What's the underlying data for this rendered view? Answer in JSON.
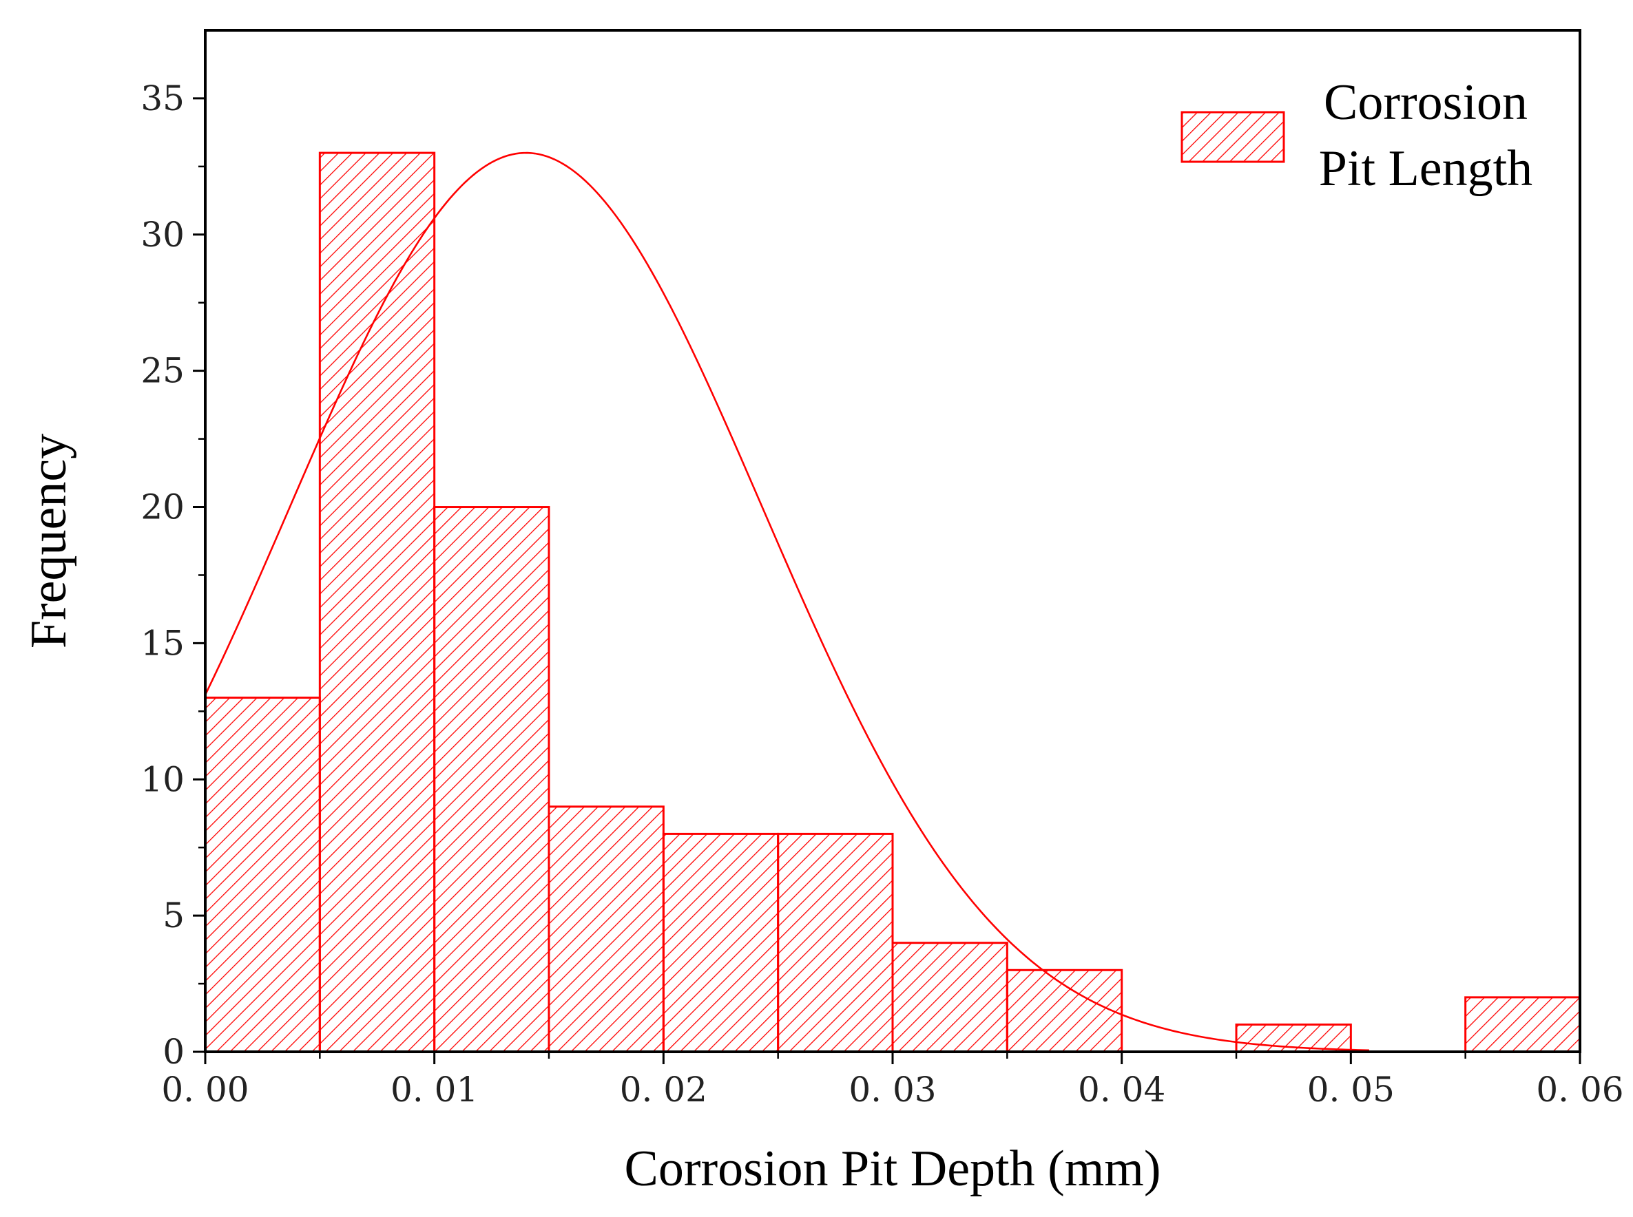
{
  "chart_data": {
    "type": "bar",
    "subtype": "histogram-with-normal-fit",
    "xlabel": "Corrosion Pit Depth (mm)",
    "ylabel": "Frequency",
    "xlim": [
      0,
      0.06
    ],
    "ylim": [
      0,
      37.5
    ],
    "x_ticks": [
      0,
      0.01,
      0.02,
      0.03,
      0.04,
      0.05,
      0.06
    ],
    "x_tick_labels": [
      "0. 00",
      "0. 01",
      "0. 02",
      "0. 03",
      "0. 04",
      "0. 05",
      "0. 06"
    ],
    "y_ticks": [
      0,
      5,
      10,
      15,
      20,
      25,
      30,
      35
    ],
    "y_tick_labels": [
      "0",
      "5",
      "10",
      "15",
      "20",
      "25",
      "30",
      "35"
    ],
    "bin_width": 0.005,
    "bins": [
      {
        "start": 0.0,
        "end": 0.005,
        "count": 13
      },
      {
        "start": 0.005,
        "end": 0.01,
        "count": 33
      },
      {
        "start": 0.01,
        "end": 0.015,
        "count": 20
      },
      {
        "start": 0.015,
        "end": 0.02,
        "count": 9
      },
      {
        "start": 0.02,
        "end": 0.025,
        "count": 8
      },
      {
        "start": 0.025,
        "end": 0.03,
        "count": 8
      },
      {
        "start": 0.03,
        "end": 0.035,
        "count": 4
      },
      {
        "start": 0.035,
        "end": 0.04,
        "count": 3
      },
      {
        "start": 0.04,
        "end": 0.045,
        "count": 0
      },
      {
        "start": 0.045,
        "end": 0.05,
        "count": 1
      },
      {
        "start": 0.05,
        "end": 0.055,
        "count": 0
      },
      {
        "start": 0.055,
        "end": 0.06,
        "count": 2
      }
    ],
    "normal_fit": {
      "mean": 0.014,
      "sd": 0.0103,
      "peak": 33.0,
      "x_range": [
        0,
        0.0508
      ]
    },
    "legend": {
      "label_lines": [
        "Corrosion",
        "Pit Length"
      ],
      "placement": "top-right"
    },
    "series_color": "#ff0000"
  }
}
